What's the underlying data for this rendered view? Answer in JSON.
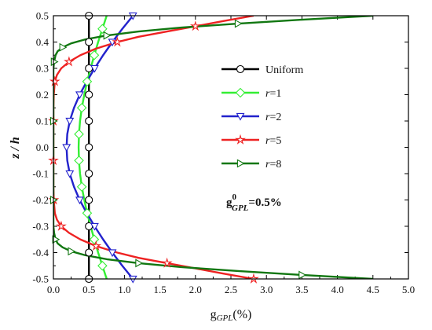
{
  "chart_data": {
    "type": "line",
    "xlabel": {
      "main": "g",
      "sub": "GPL",
      "suffix": "(%)"
    },
    "ylabel": "z / h",
    "xlim": [
      0,
      5
    ],
    "ylim": [
      -0.5,
      0.5
    ],
    "x_ticks": [
      0.0,
      0.5,
      1.0,
      1.5,
      2.0,
      2.5,
      3.0,
      3.5,
      4.0,
      4.5,
      5.0
    ],
    "y_ticks": [
      -0.5,
      -0.4,
      -0.3,
      -0.2,
      -0.1,
      0.0,
      0.1,
      0.2,
      0.3,
      0.4,
      0.5
    ],
    "x_tick_labels": [
      "0.0",
      "0.5",
      "1.0",
      "1.5",
      "2.0",
      "2.5",
      "3.0",
      "3.5",
      "4.0",
      "4.5",
      "5.0"
    ],
    "y_tick_labels": [
      "-0.5",
      "-0.4",
      "-0.3",
      "-0.2",
      "-0.1",
      "0.0",
      "0.1",
      "0.2",
      "0.3",
      "0.4",
      "0.5"
    ],
    "legend_position": "center-right",
    "annotation": {
      "main": "g",
      "sup": "0",
      "sub": "GPL",
      "suffix": "=0.5%"
    },
    "series": [
      {
        "name": "Uniform",
        "name_prefix": "",
        "name_suffix": "Uniform",
        "color": "#000000",
        "marker": "circle",
        "points": [
          [
            0.5,
            -0.5
          ],
          [
            0.5,
            -0.45
          ],
          [
            0.5,
            -0.4
          ],
          [
            0.5,
            -0.35
          ],
          [
            0.5,
            -0.3
          ],
          [
            0.5,
            -0.25
          ],
          [
            0.5,
            -0.2
          ],
          [
            0.5,
            -0.15
          ],
          [
            0.5,
            -0.1
          ],
          [
            0.5,
            -0.05
          ],
          [
            0.5,
            0.0
          ],
          [
            0.5,
            0.05
          ],
          [
            0.5,
            0.1
          ],
          [
            0.5,
            0.15
          ],
          [
            0.5,
            0.2
          ],
          [
            0.5,
            0.25
          ],
          [
            0.5,
            0.3
          ],
          [
            0.5,
            0.35
          ],
          [
            0.5,
            0.4
          ],
          [
            0.5,
            0.45
          ],
          [
            0.5,
            0.5
          ]
        ]
      },
      {
        "name": "r=1",
        "name_prefix": "r",
        "name_suffix": "=1",
        "color": "#33ee33",
        "marker": "diamond",
        "points": [
          [
            0.75,
            -0.5
          ],
          [
            0.69,
            -0.45
          ],
          [
            0.63,
            -0.4
          ],
          [
            0.575,
            -0.35
          ],
          [
            0.525,
            -0.3
          ],
          [
            0.475,
            -0.25
          ],
          [
            0.435,
            -0.2
          ],
          [
            0.4,
            -0.15
          ],
          [
            0.375,
            -0.1
          ],
          [
            0.36,
            -0.05
          ],
          [
            0.355,
            0.0
          ],
          [
            0.36,
            0.05
          ],
          [
            0.375,
            0.1
          ],
          [
            0.4,
            0.15
          ],
          [
            0.435,
            0.2
          ],
          [
            0.475,
            0.25
          ],
          [
            0.525,
            0.3
          ],
          [
            0.575,
            0.35
          ],
          [
            0.63,
            0.4
          ],
          [
            0.69,
            0.45
          ],
          [
            0.75,
            0.5
          ]
        ]
      },
      {
        "name": "r=2",
        "name_prefix": "r",
        "name_suffix": "=2",
        "color": "#2222cc",
        "marker": "triangle-down",
        "points": [
          [
            1.12,
            -0.5
          ],
          [
            0.97,
            -0.45
          ],
          [
            0.83,
            -0.4
          ],
          [
            0.7,
            -0.35
          ],
          [
            0.58,
            -0.3
          ],
          [
            0.47,
            -0.25
          ],
          [
            0.37,
            -0.2
          ],
          [
            0.29,
            -0.15
          ],
          [
            0.23,
            -0.1
          ],
          [
            0.195,
            -0.05
          ],
          [
            0.185,
            0.0
          ],
          [
            0.195,
            0.05
          ],
          [
            0.23,
            0.1
          ],
          [
            0.29,
            0.15
          ],
          [
            0.37,
            0.2
          ],
          [
            0.47,
            0.25
          ],
          [
            0.58,
            0.3
          ],
          [
            0.7,
            0.35
          ],
          [
            0.83,
            0.4
          ],
          [
            0.97,
            0.45
          ],
          [
            1.12,
            0.5
          ]
        ]
      },
      {
        "name": "r=5",
        "name_prefix": "r",
        "name_suffix": "=5",
        "color": "#ee2222",
        "marker": "star",
        "points": [
          [
            2.82,
            -0.5
          ],
          [
            2.4,
            -0.48
          ],
          [
            2.0,
            -0.46
          ],
          [
            1.6,
            -0.44
          ],
          [
            1.2,
            -0.42
          ],
          [
            0.9,
            -0.4
          ],
          [
            0.6,
            -0.375
          ],
          [
            0.38,
            -0.35
          ],
          [
            0.22,
            -0.325
          ],
          [
            0.11,
            -0.3
          ],
          [
            0.05,
            -0.275
          ],
          [
            0.02,
            -0.25
          ],
          [
            0.005,
            -0.2
          ],
          [
            0.0,
            -0.15
          ],
          [
            0.0,
            -0.1
          ],
          [
            0.0,
            -0.05
          ],
          [
            0.0,
            0.0
          ],
          [
            0.0,
            0.05
          ],
          [
            0.0,
            0.1
          ],
          [
            0.0,
            0.15
          ],
          [
            0.005,
            0.2
          ],
          [
            0.02,
            0.25
          ],
          [
            0.05,
            0.275
          ],
          [
            0.11,
            0.3
          ],
          [
            0.22,
            0.325
          ],
          [
            0.38,
            0.35
          ],
          [
            0.6,
            0.375
          ],
          [
            0.9,
            0.4
          ],
          [
            1.2,
            0.42
          ],
          [
            1.6,
            0.44
          ],
          [
            2.0,
            0.46
          ],
          [
            2.4,
            0.48
          ],
          [
            2.82,
            0.5
          ]
        ]
      },
      {
        "name": "r=8",
        "name_prefix": "r",
        "name_suffix": "=8",
        "color": "#117711",
        "marker": "triangle-right",
        "points": [
          [
            4.5,
            -0.5
          ],
          [
            3.5,
            -0.485
          ],
          [
            2.6,
            -0.47
          ],
          [
            1.8,
            -0.455
          ],
          [
            1.2,
            -0.44
          ],
          [
            0.75,
            -0.425
          ],
          [
            0.45,
            -0.41
          ],
          [
            0.25,
            -0.395
          ],
          [
            0.13,
            -0.38
          ],
          [
            0.06,
            -0.365
          ],
          [
            0.03,
            -0.35
          ],
          [
            0.01,
            -0.325
          ],
          [
            0.0,
            -0.3
          ],
          [
            0.0,
            -0.2
          ],
          [
            0.0,
            -0.1
          ],
          [
            0.0,
            0.0
          ],
          [
            0.0,
            0.1
          ],
          [
            0.0,
            0.2
          ],
          [
            0.0,
            0.3
          ],
          [
            0.01,
            0.325
          ],
          [
            0.03,
            0.35
          ],
          [
            0.06,
            0.365
          ],
          [
            0.13,
            0.38
          ],
          [
            0.25,
            0.395
          ],
          [
            0.45,
            0.41
          ],
          [
            0.75,
            0.425
          ],
          [
            1.2,
            0.44
          ],
          [
            1.8,
            0.455
          ],
          [
            2.6,
            0.47
          ],
          [
            3.5,
            0.485
          ],
          [
            4.5,
            0.5
          ]
        ]
      }
    ]
  }
}
